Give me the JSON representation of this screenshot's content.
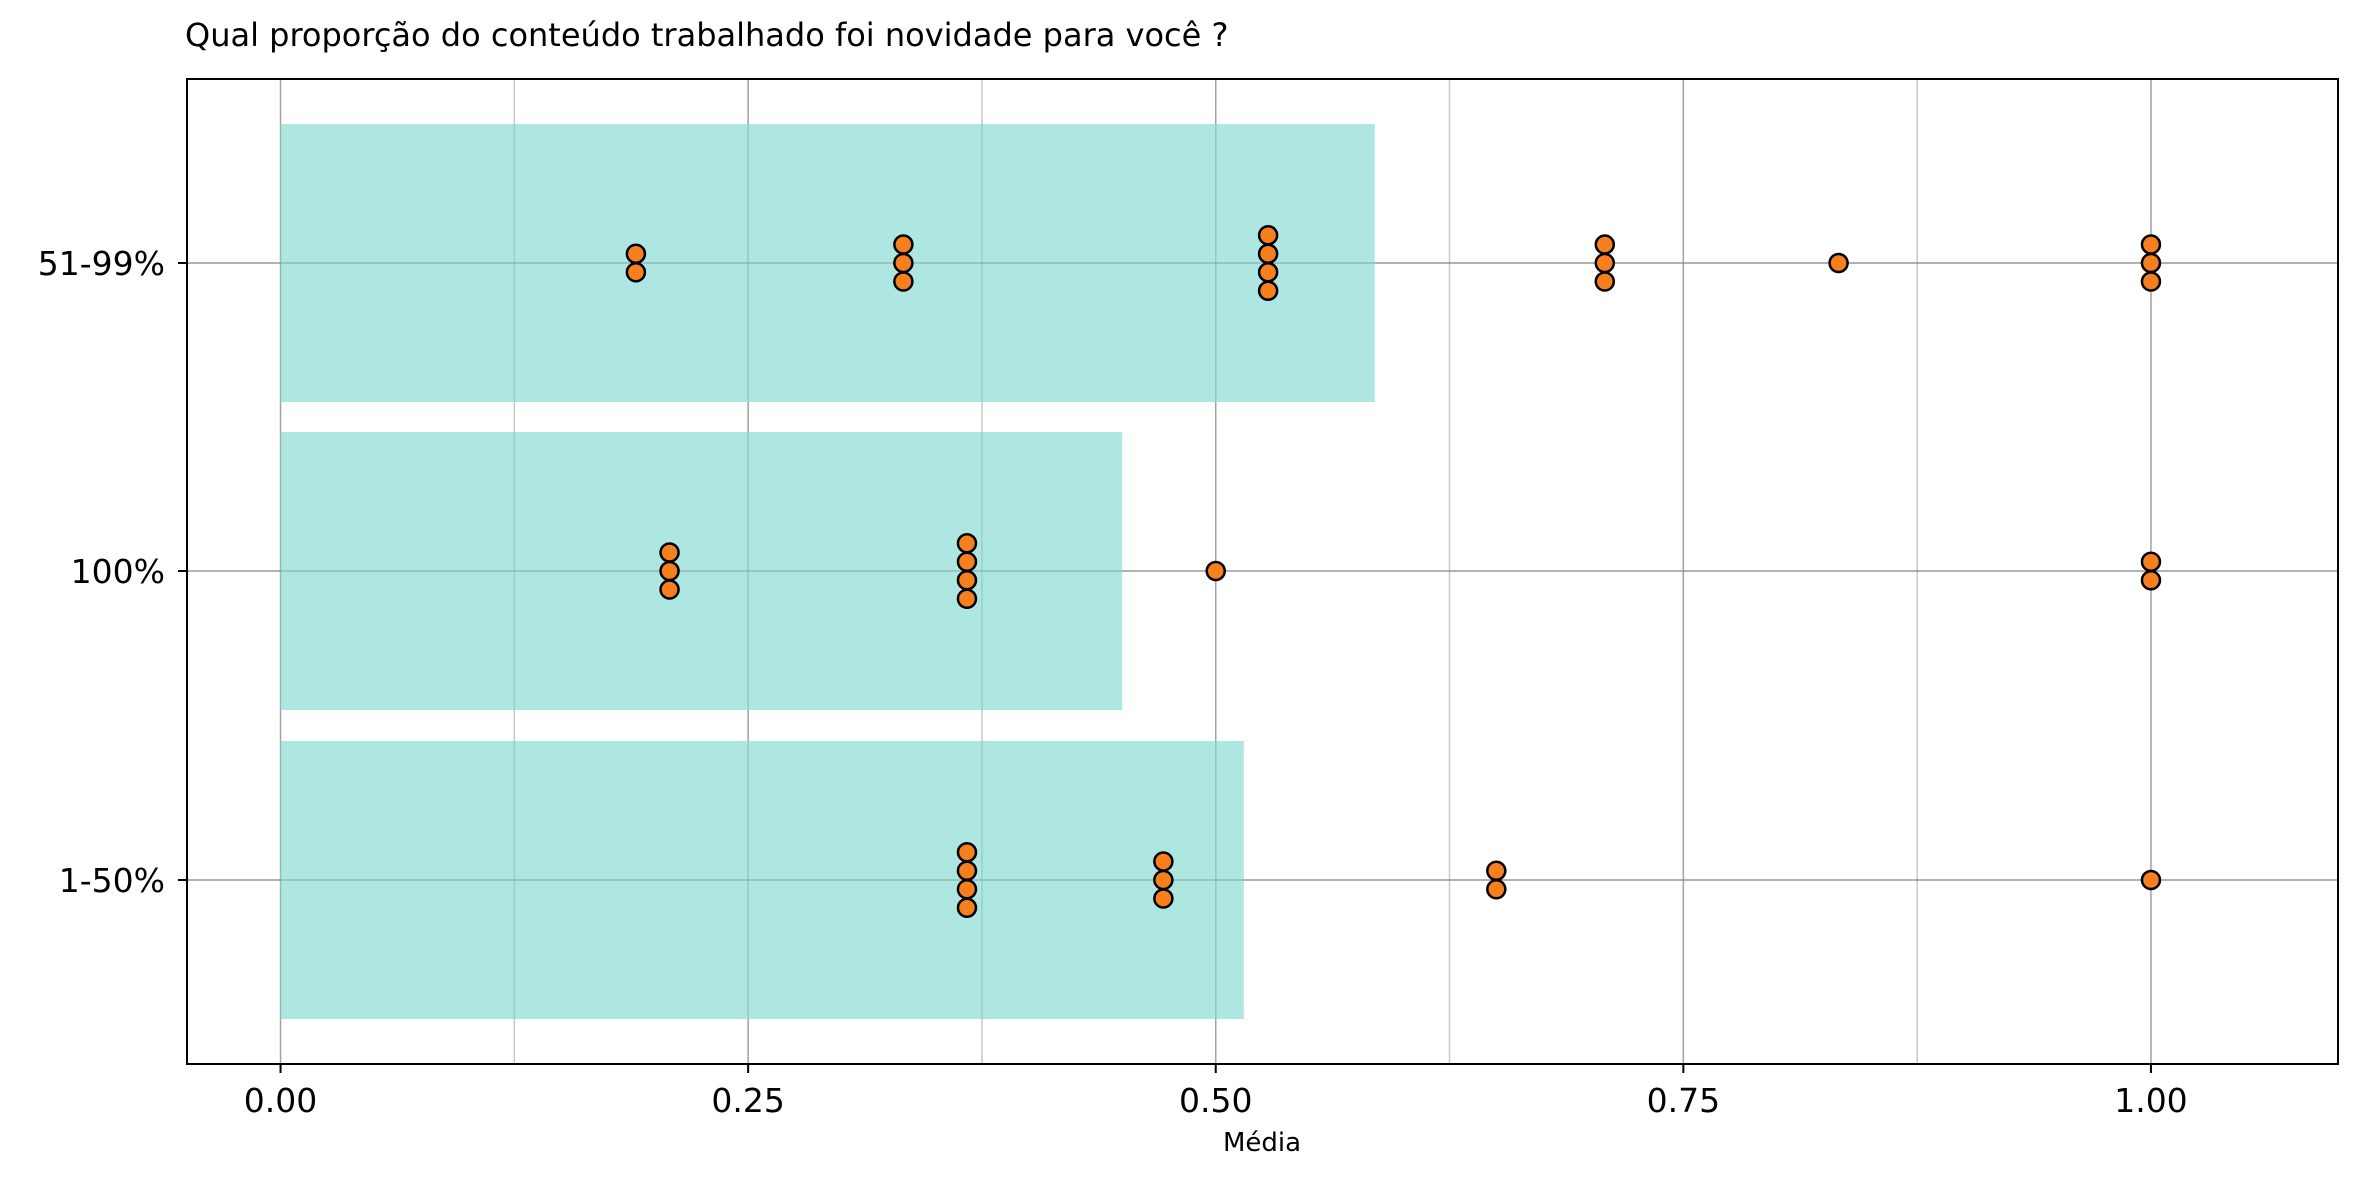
{
  "chart_data": {
    "type": "bar",
    "orientation": "horizontal",
    "title": "Qual proporção do conteúdo trabalhado foi novidade para você ?",
    "xlabel": "Média",
    "ylabel": "",
    "xlim": [
      -0.05,
      1.1
    ],
    "x_ticks": [
      "0.00",
      "0.25",
      "0.50",
      "0.75",
      "1.00"
    ],
    "x_tick_values": [
      0,
      0.25,
      0.5,
      0.75,
      1.0
    ],
    "grid": true,
    "categories": [
      "51-99%",
      "100%",
      "1-50%"
    ],
    "series": [
      {
        "type": "bar",
        "values": [
          0.585,
          0.45,
          0.515
        ],
        "color": "#9ce0dc"
      },
      {
        "type": "strip",
        "color": "#f77f1d",
        "points": [
          [
            0.19,
            0.19,
            0.333,
            0.333,
            0.333,
            0.528,
            0.528,
            0.528,
            0.528,
            0.708,
            0.708,
            0.708,
            0.833,
            1.0,
            1.0,
            1.0
          ],
          [
            0.208,
            0.208,
            0.208,
            0.367,
            0.367,
            0.367,
            0.367,
            0.5,
            1.0,
            1.0
          ],
          [
            0.367,
            0.367,
            0.367,
            0.367,
            0.472,
            0.472,
            0.472,
            0.65,
            0.65,
            1.0
          ]
        ]
      }
    ]
  }
}
